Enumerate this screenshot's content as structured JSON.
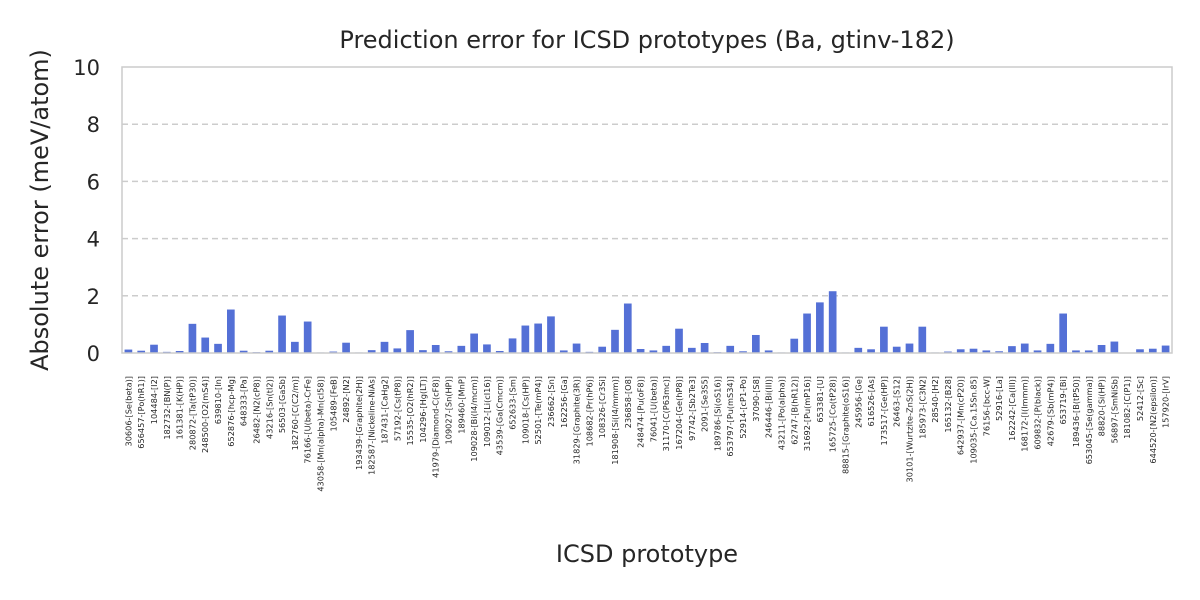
{
  "chart_data": {
    "type": "bar",
    "title": "Prediction error for ICSD prototypes (Ba, gtinv-182)",
    "xlabel": "ICSD prototype",
    "ylabel": "Absolute error (meV/atom)",
    "ylim": [
      0,
      10
    ],
    "yticks": [
      0,
      2,
      4,
      6,
      8,
      10
    ],
    "grid": "y-dashed",
    "bar_color": "#5470d6",
    "categories": [
      "30606-[Se(beta)]",
      "656457-[Po(hR1)]",
      "104484-[I2]",
      "182732-[BN(P)]",
      "161381-[K(HP)]",
      "280872-[Ta(tP30)]",
      "248500-[O2(mS4)]",
      "639810-[In]",
      "652876-[hcp-Mg]",
      "648333-[Pa]",
      "26482-[N2(cP8)]",
      "43216-[Sn(tI2)]",
      "56503-[GaSb]",
      "182760-[C(C2/m)]",
      "76166-[U(beta)-CrFe]",
      "43058-[Mn(alpha)-Mn(cI58)]",
      "105489-[FeB]",
      "24892-[N2]",
      "193439-[Graphite(2H)]",
      "182587-[Nickeline-NiAs]",
      "187431-[CaHg2]",
      "57192-[Cs(tP8)]",
      "15535-[O2(hR2)]",
      "104296-[Hg(LT)]",
      "41979-[Diamond-C(cF8)]",
      "109027-[Sn(HP)]",
      "189460-[MnP]",
      "109028-[Bi(I4/mcm)]",
      "109012-[Li(cI16)]",
      "43539-[Ga(Cmcm)]",
      "652633-[Sm]",
      "109018-[Cs(HP)]",
      "52501-[Te(mP4)]",
      "236662-[Sn]",
      "162256-[Ga]",
      "31829-[Graphite(3R)]",
      "108682-[Pr(hP6)]",
      "108326-[Cr3Si]",
      "181908-[Si(I4/mmm)]",
      "236858-[O8]",
      "248474-[Pu(oF8)]",
      "76041-[U(beta)]",
      "31170-[C(P63mc)]",
      "167204-[Ge(hP8)]",
      "97742-[Sb2Te3]",
      "2091-[Se3S5]",
      "189786-[Si(oS16)]",
      "653797-[Pu(mS34)]",
      "52914-[cP1-Po]",
      "37090-[S8]",
      "246446-[Bi(III)]",
      "43211-[Po(alpha)]",
      "62747-[B(hR12)]",
      "31692-[Pu(mP16)]",
      "653381-[U]",
      "165725-[Co(tP28)]",
      "88815-[Graphite(oS16)]",
      "245956-[Ge]",
      "616526-[As]",
      "173517-[Ge(HP)]",
      "26463-[S12]",
      "30101-[Wurtzite-ZnS(2H)]",
      "185973-[C3N2]",
      "28540-[H2]",
      "165132-[B28]",
      "642937-[Mn(cP20)]",
      "109035-[Ca.15Sn.85]",
      "76156-[bcc-W]",
      "52916-[La]",
      "162242-[Ca(III)]",
      "168172-[I(Immm)]",
      "609832-[P(black)]",
      "42679-[Sb(mP4)]",
      "653719-[Bi]",
      "189436-[B(tP50)]",
      "653045-[Se(gamma)]",
      "88820-[Si(HP)]",
      "56897-[SmNiSb]",
      "181082-[C(P1)]",
      "52412-[Sc]",
      "644520-[N2(epsilon)]",
      "157920-[IrV]"
    ],
    "values": [
      0.12,
      0.08,
      0.29,
      0.04,
      0.07,
      1.02,
      0.54,
      0.32,
      1.52,
      0.08,
      0.03,
      0.08,
      1.31,
      0.39,
      1.1,
      0.02,
      0.05,
      0.36,
      0.02,
      0.1,
      0.39,
      0.16,
      0.8,
      0.1,
      0.28,
      0.06,
      0.25,
      0.68,
      0.3,
      0.07,
      0.51,
      0.96,
      1.03,
      1.28,
      0.09,
      0.33,
      0.04,
      0.22,
      0.81,
      1.73,
      0.14,
      0.09,
      0.25,
      0.85,
      0.18,
      0.35,
      0.03,
      0.25,
      0.06,
      0.63,
      0.09,
      0.02,
      0.5,
      1.38,
      1.77,
      2.16,
      0.02,
      0.18,
      0.13,
      0.92,
      0.22,
      0.33,
      0.92,
      0.02,
      0.05,
      0.13,
      0.15,
      0.09,
      0.06,
      0.24,
      0.33,
      0.09,
      0.32,
      1.38,
      0.09,
      0.09,
      0.28,
      0.4,
      0.01,
      0.13,
      0.15,
      0.26
    ]
  }
}
